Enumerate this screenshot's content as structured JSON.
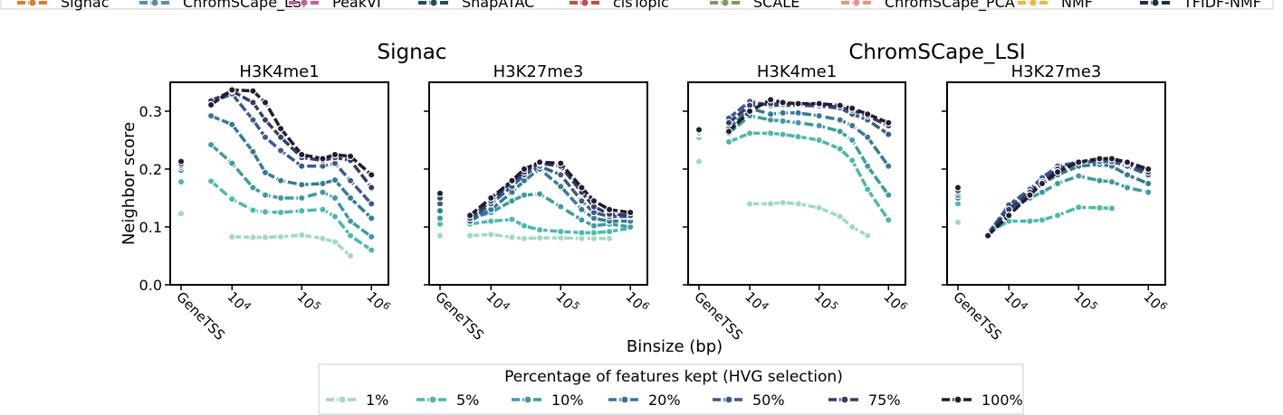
{
  "colors": {
    "method": [
      "#e07b2a",
      "#5b8fa8",
      "#c45ca0",
      "#1e4f5c",
      "#c84a47",
      "#7f9a5a",
      "#e89484",
      "#f0b740",
      "#1f2a4f"
    ],
    "pct": [
      "#9fd9bf",
      "#4bb8ad",
      "#3d9aa2",
      "#347a96",
      "#3a5a8f",
      "#353c6a",
      "#231c2f"
    ]
  },
  "top_legend": {
    "entries": [
      "Signac",
      "ChromSCape_LSI",
      "PeakVI",
      "ShapATAC",
      "cisTopic",
      "SCALE",
      "ChromSCape_PCA",
      "NMF",
      "TFIDF-NMF"
    ]
  },
  "axes": {
    "ylabel": "Neighbor score",
    "xlabel": "Binsize (bp)",
    "yticks": [
      "0.0",
      "0.1",
      "0.2",
      "0.3"
    ],
    "xticks": [
      "GeneTSS",
      "10",
      "10",
      "10"
    ],
    "xtick_exps": [
      "",
      "4",
      "5",
      "6"
    ]
  },
  "groups": [
    {
      "title": "Signac"
    },
    {
      "title": "ChromSCape_LSI"
    }
  ],
  "bottom_legend": {
    "title": "Percentage of features kept (HVG selection)",
    "entries": [
      "1%",
      "5%",
      "10%",
      "20%",
      "50%",
      "75%",
      "100%"
    ]
  },
  "chart_data": [
    {
      "type": "line",
      "group": "Signac",
      "title": "H3K4me1",
      "xscale": "log",
      "ylim": [
        0,
        0.35
      ],
      "xlabel": "Binsize (bp)",
      "ylabel": "Neighbor score",
      "genetss": [
        0.123,
        0.178,
        0.198,
        0.203,
        0.206,
        0.209,
        0.213
      ],
      "x": [
        5000,
        10000,
        20000,
        30000,
        50000,
        100000,
        200000,
        300000,
        500000,
        1000000
      ],
      "series": [
        {
          "name": "1%",
          "values": [
            null,
            0.083,
            0.082,
            0.082,
            0.083,
            0.086,
            0.08,
            0.074,
            0.05,
            null
          ]
        },
        {
          "name": "5%",
          "values": [
            0.179,
            0.148,
            0.129,
            0.126,
            0.125,
            0.128,
            0.13,
            0.118,
            0.085,
            0.06
          ]
        },
        {
          "name": "10%",
          "values": [
            0.242,
            0.21,
            0.168,
            0.155,
            0.15,
            0.15,
            0.16,
            0.15,
            0.11,
            0.083
          ]
        },
        {
          "name": "20%",
          "values": [
            0.292,
            0.277,
            0.23,
            0.194,
            0.18,
            0.173,
            0.175,
            0.181,
            0.15,
            0.115
          ]
        },
        {
          "name": "50%",
          "values": [
            0.315,
            0.33,
            0.285,
            0.255,
            0.232,
            0.205,
            0.205,
            0.21,
            0.18,
            0.14
          ]
        },
        {
          "name": "75%",
          "values": [
            0.318,
            0.335,
            0.315,
            0.285,
            0.255,
            0.22,
            0.215,
            0.22,
            0.215,
            0.168
          ]
        },
        {
          "name": "100%",
          "values": [
            0.311,
            0.337,
            0.335,
            0.315,
            0.27,
            0.225,
            0.218,
            0.225,
            0.222,
            0.19
          ]
        }
      ]
    },
    {
      "type": "line",
      "group": "Signac",
      "title": "H3K27me3",
      "xscale": "log",
      "ylim": [
        0,
        0.35
      ],
      "xlabel": "Binsize (bp)",
      "ylabel": "Neighbor score",
      "genetss": [
        0.085,
        0.105,
        0.115,
        0.128,
        0.14,
        0.15,
        0.158
      ],
      "x": [
        5000,
        10000,
        20000,
        30000,
        50000,
        100000,
        200000,
        300000,
        500000,
        1000000
      ],
      "series": [
        {
          "name": "1%",
          "values": [
            0.085,
            0.087,
            0.082,
            0.08,
            0.081,
            0.081,
            0.08,
            0.08,
            0.08,
            null
          ]
        },
        {
          "name": "5%",
          "values": [
            0.105,
            0.11,
            0.113,
            0.102,
            0.095,
            0.092,
            0.09,
            0.09,
            0.092,
            0.098
          ]
        },
        {
          "name": "10%",
          "values": [
            0.115,
            0.125,
            0.145,
            0.155,
            0.157,
            0.135,
            0.112,
            0.102,
            0.105,
            0.1
          ]
        },
        {
          "name": "20%",
          "values": [
            0.11,
            0.13,
            0.16,
            0.18,
            0.2,
            0.17,
            0.13,
            0.115,
            0.11,
            0.11
          ]
        },
        {
          "name": "50%",
          "values": [
            0.11,
            0.14,
            0.17,
            0.19,
            0.205,
            0.19,
            0.145,
            0.125,
            0.118,
            0.118
          ]
        },
        {
          "name": "75%",
          "values": [
            0.115,
            0.145,
            0.178,
            0.195,
            0.21,
            0.205,
            0.16,
            0.135,
            0.122,
            0.12
          ]
        },
        {
          "name": "100%",
          "values": [
            0.12,
            0.15,
            0.18,
            0.2,
            0.212,
            0.21,
            0.168,
            0.145,
            0.13,
            0.125
          ]
        }
      ]
    },
    {
      "type": "line",
      "group": "ChromSCape_LSI",
      "title": "H3K4me1",
      "xscale": "log",
      "ylim": [
        0,
        0.35
      ],
      "xlabel": "Binsize (bp)",
      "ylabel": "Neighbor score",
      "genetss": [
        0.213,
        0.255,
        0.26,
        0.262,
        0.263,
        0.266,
        0.268
      ],
      "x": [
        5000,
        10000,
        20000,
        30000,
        50000,
        100000,
        200000,
        300000,
        500000,
        1000000
      ],
      "series": [
        {
          "name": "1%",
          "values": [
            null,
            0.14,
            0.14,
            0.142,
            0.14,
            0.133,
            0.118,
            0.1,
            0.085,
            null
          ]
        },
        {
          "name": "5%",
          "values": [
            0.247,
            0.262,
            0.262,
            0.26,
            0.256,
            0.25,
            0.235,
            0.215,
            0.165,
            0.112
          ]
        },
        {
          "name": "10%",
          "values": [
            0.262,
            0.292,
            0.285,
            0.283,
            0.28,
            0.275,
            0.265,
            0.25,
            0.205,
            0.155
          ]
        },
        {
          "name": "20%",
          "values": [
            0.27,
            0.305,
            0.295,
            0.297,
            0.297,
            0.292,
            0.285,
            0.275,
            0.255,
            0.205
          ]
        },
        {
          "name": "50%",
          "values": [
            0.288,
            0.317,
            0.31,
            0.31,
            0.31,
            0.309,
            0.305,
            0.295,
            0.285,
            0.26
          ]
        },
        {
          "name": "75%",
          "values": [
            0.28,
            0.31,
            0.313,
            0.312,
            0.312,
            0.312,
            0.306,
            0.302,
            0.292,
            0.275
          ]
        },
        {
          "name": "100%",
          "values": [
            0.265,
            0.3,
            0.32,
            0.315,
            0.313,
            0.313,
            0.31,
            0.305,
            0.295,
            0.28
          ]
        }
      ]
    },
    {
      "type": "line",
      "group": "ChromSCape_LSI",
      "title": "H3K27me3",
      "xscale": "log",
      "ylim": [
        0,
        0.35
      ],
      "xlabel": "Binsize (bp)",
      "ylabel": "Neighbor score",
      "genetss": [
        0.108,
        0.14,
        0.15,
        0.155,
        0.16,
        0.163,
        0.168
      ],
      "x": [
        5000,
        10000,
        20000,
        30000,
        50000,
        100000,
        200000,
        300000,
        500000,
        1000000
      ],
      "series": [
        {
          "name": "1%",
          "values": [
            null,
            null,
            null,
            null,
            null,
            null,
            null,
            null,
            null,
            null
          ]
        },
        {
          "name": "5%",
          "values": [
            0.09,
            0.11,
            0.11,
            0.112,
            0.12,
            0.134,
            0.133,
            0.132,
            null,
            null
          ]
        },
        {
          "name": "10%",
          "values": [
            0.09,
            0.13,
            0.15,
            0.16,
            0.175,
            0.188,
            0.18,
            0.178,
            0.168,
            0.16
          ]
        },
        {
          "name": "20%",
          "values": [
            0.088,
            0.135,
            0.16,
            0.175,
            0.19,
            0.205,
            0.208,
            0.205,
            0.19,
            0.175
          ]
        },
        {
          "name": "50%",
          "values": [
            0.087,
            0.138,
            0.165,
            0.185,
            0.205,
            0.212,
            0.213,
            0.213,
            0.205,
            0.19
          ]
        },
        {
          "name": "75%",
          "values": [
            0.087,
            0.13,
            0.16,
            0.178,
            0.2,
            0.212,
            0.218,
            0.218,
            0.21,
            0.195
          ]
        },
        {
          "name": "100%",
          "values": [
            0.085,
            0.12,
            0.155,
            0.175,
            0.195,
            0.212,
            0.218,
            0.218,
            0.212,
            0.2
          ]
        }
      ]
    }
  ]
}
